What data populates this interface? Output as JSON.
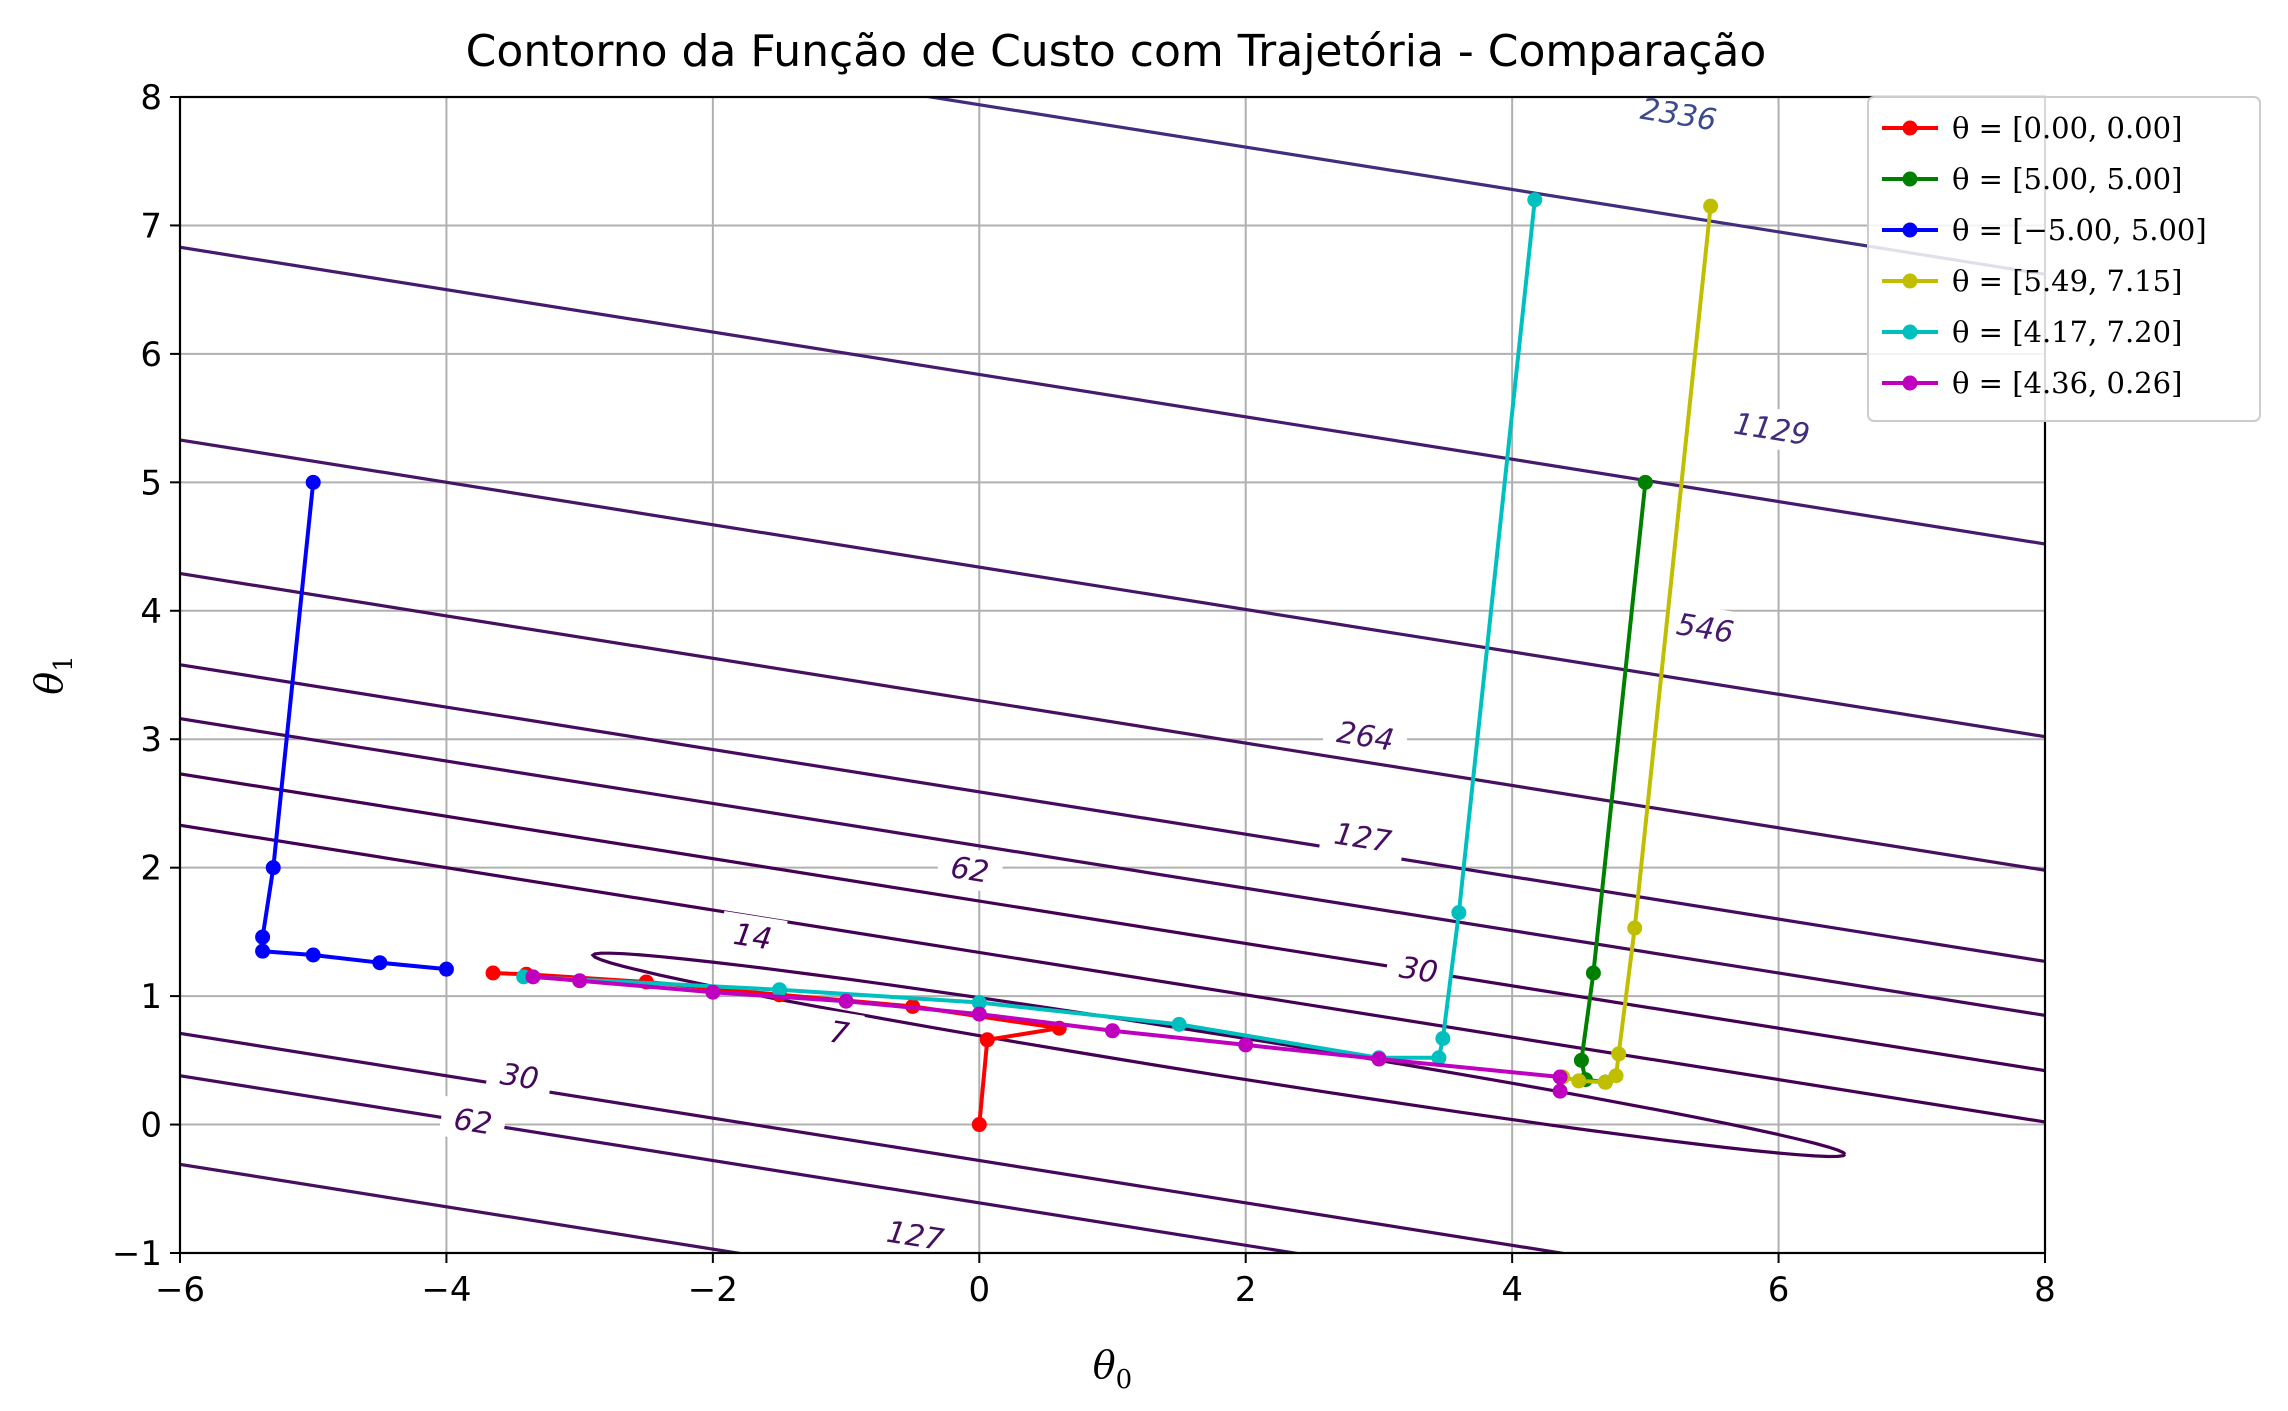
{
  "chart_data": {
    "type": "line",
    "title": "Contorno da Função de Custo com Trajetória - Comparação",
    "xlabel": "θ",
    "xlabel_sub": "0",
    "ylabel": "θ",
    "ylabel_sub": "1",
    "xlim": [
      -6,
      8
    ],
    "ylim": [
      -1,
      8
    ],
    "xticks": [
      -6,
      -4,
      -2,
      0,
      2,
      4,
      6,
      8
    ],
    "yticks": [
      -1,
      0,
      1,
      2,
      3,
      4,
      5,
      6,
      7,
      8
    ],
    "xtick_labels": [
      "−6",
      "−4",
      "−2",
      "0",
      "2",
      "4",
      "6",
      "8"
    ],
    "ytick_labels": [
      "−1",
      "0",
      "1",
      "2",
      "3",
      "4",
      "5",
      "6",
      "7",
      "8"
    ],
    "grid": true,
    "legend_position": "top-right",
    "contour": {
      "axis_line_slope": -0.165,
      "axis_line_intercept": 0.84,
      "levels": [
        {
          "value": 7,
          "label": "7",
          "color": "#440154",
          "offsets": [
            0.5
          ],
          "labels_at": [
            {
              "x": -1.05,
              "y": 0.72
            }
          ]
        },
        {
          "value": 14,
          "label": "14",
          "color": "#440154",
          "offsets": [
            0.9
          ],
          "labels_at": [
            {
              "x": -1.7,
              "y": 1.47
            }
          ]
        },
        {
          "value": 30,
          "label": "30",
          "color": "#45085a",
          "offsets": [
            1.33,
            -1.12
          ],
          "labels_at": [
            {
              "x": 3.3,
              "y": 1.21
            },
            {
              "x": -3.45,
              "y": 0.38
            }
          ]
        },
        {
          "value": 62,
          "label": "62",
          "color": "#460b5e",
          "offsets": [
            1.75,
            -1.45
          ],
          "labels_at": [
            {
              "x": -0.07,
              "y": 1.99
            },
            {
              "x": -3.8,
              "y": 0.03
            }
          ]
        },
        {
          "value": 127,
          "label": "127",
          "color": "#46105f",
          "offsets": [
            2.46,
            -2.14
          ],
          "labels_at": [
            {
              "x": 2.88,
              "y": 2.24
            },
            {
              "x": -0.48,
              "y": -0.86
            }
          ]
        },
        {
          "value": 264,
          "label": "264",
          "color": "#471566",
          "offsets": [
            3.5
          ],
          "labels_at": [
            {
              "x": 2.9,
              "y": 3.03
            }
          ]
        },
        {
          "value": 546,
          "label": "546",
          "color": "#461a6c",
          "offsets": [
            5.0
          ],
          "labels_at": [
            {
              "x": 5.45,
              "y": 3.87
            }
          ]
        },
        {
          "value": 1129,
          "label": "1129",
          "color": "#412d7c",
          "offsets": [
            7.1
          ],
          "labels_at": [
            {
              "x": 5.95,
              "y": 5.42
            }
          ]
        },
        {
          "value": 2336,
          "label": "2336",
          "color": "#3a4a8c",
          "offsets": [
            10.5
          ],
          "labels_at": [
            {
              "x": 5.25,
              "y": 7.87
            }
          ]
        }
      ]
    },
    "series": [
      {
        "name": "θ = [0.00, 0.00]",
        "color": "#ff0000",
        "points": [
          [
            0.0,
            0.0
          ],
          [
            0.06,
            0.66
          ],
          [
            0.6,
            0.75
          ],
          [
            -0.5,
            0.92
          ],
          [
            -1.5,
            1.01
          ],
          [
            -2.5,
            1.11
          ],
          [
            -3.4,
            1.17
          ],
          [
            -3.65,
            1.18
          ]
        ]
      },
      {
        "name": "θ = [5.00, 5.00]",
        "color": "#008000",
        "points": [
          [
            5.0,
            5.0
          ],
          [
            4.61,
            1.18
          ],
          [
            4.52,
            0.5
          ],
          [
            4.55,
            0.35
          ],
          [
            4.7,
            0.33
          ]
        ]
      },
      {
        "name": "θ = [−5.00, 5.00]",
        "color": "#0000ff",
        "points": [
          [
            -5.0,
            5.0
          ],
          [
            -5.3,
            2.0
          ],
          [
            -5.38,
            1.46
          ],
          [
            -5.38,
            1.35
          ],
          [
            -5.0,
            1.32
          ],
          [
            -4.5,
            1.26
          ],
          [
            -4.0,
            1.21
          ]
        ]
      },
      {
        "name": "θ = [5.49, 7.15]",
        "color": "#bfbf00",
        "points": [
          [
            5.49,
            7.15
          ],
          [
            4.92,
            1.53
          ],
          [
            4.8,
            0.55
          ],
          [
            4.78,
            0.38
          ],
          [
            4.7,
            0.33
          ],
          [
            4.5,
            0.34
          ],
          [
            4.38,
            0.37
          ]
        ]
      },
      {
        "name": "θ = [4.17, 7.20]",
        "color": "#00bfbf",
        "points": [
          [
            4.17,
            7.2
          ],
          [
            3.6,
            1.65
          ],
          [
            3.48,
            0.67
          ],
          [
            3.45,
            0.52
          ],
          [
            3.0,
            0.52
          ],
          [
            1.5,
            0.78
          ],
          [
            0.0,
            0.95
          ],
          [
            -1.5,
            1.05
          ],
          [
            -3.42,
            1.15
          ]
        ]
      },
      {
        "name": "θ = [4.36, 0.26]",
        "color": "#bf00bf",
        "points": [
          [
            4.36,
            0.26
          ],
          [
            4.36,
            0.37
          ],
          [
            3.0,
            0.51
          ],
          [
            2.0,
            0.62
          ],
          [
            1.0,
            0.73
          ],
          [
            0.0,
            0.86
          ],
          [
            -1.0,
            0.96
          ],
          [
            -2.0,
            1.03
          ],
          [
            -3.0,
            1.12
          ],
          [
            -3.35,
            1.15
          ]
        ]
      }
    ]
  }
}
